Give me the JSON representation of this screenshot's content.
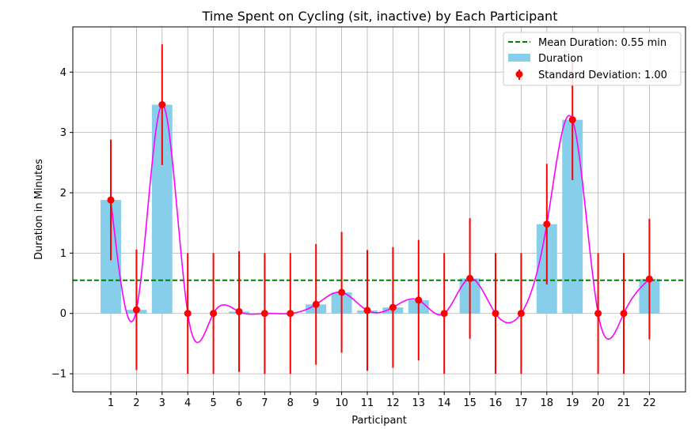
{
  "chart_data": {
    "type": "bar",
    "title": "Time Spent on Cycling (sit, inactive) by Each Participant",
    "xlabel": "Participant",
    "ylabel": "Duration in Minutes",
    "categories": [
      "1",
      "2",
      "3",
      "4",
      "5",
      "6",
      "7",
      "8",
      "9",
      "10",
      "11",
      "12",
      "13",
      "14",
      "15",
      "16",
      "17",
      "18",
      "19",
      "20",
      "21",
      "22"
    ],
    "series": [
      {
        "name": "Duration",
        "color": "#87CEEB",
        "values": [
          1.88,
          0.06,
          3.46,
          0.0,
          0.0,
          0.03,
          0.0,
          0.0,
          0.15,
          0.35,
          0.05,
          0.1,
          0.22,
          0.0,
          0.58,
          0.0,
          0.0,
          1.48,
          3.21,
          0.0,
          0.0,
          0.57
        ]
      }
    ],
    "error_bars": {
      "name": "Standard Deviation: 1.00",
      "value": 1.0,
      "color": "#FF0000"
    },
    "mean_line": {
      "name": "Mean Duration: 0.55 min",
      "value": 0.55,
      "color": "#008000",
      "style": "dashed"
    },
    "smooth_curve": {
      "color": "#FF00FF"
    },
    "ylim": [
      -1.3,
      4.75
    ],
    "yticks": [
      -1,
      0,
      1,
      2,
      3,
      4
    ],
    "ytick_labels": [
      "−1",
      "0",
      "1",
      "2",
      "3",
      "4"
    ],
    "grid": true,
    "legend_position": "top-right"
  }
}
